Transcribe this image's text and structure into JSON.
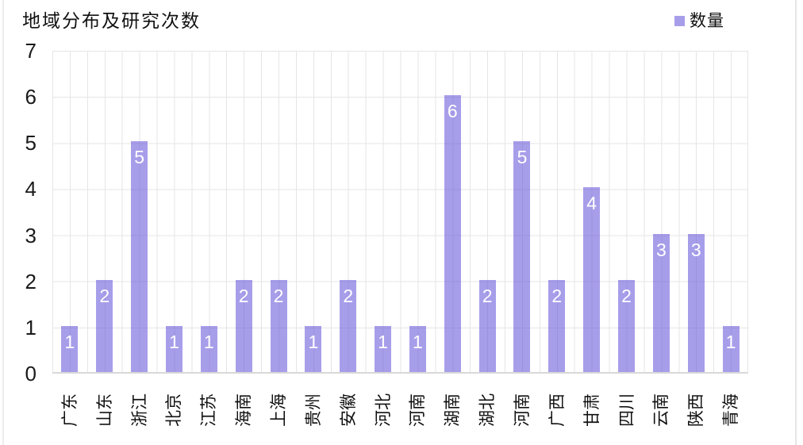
{
  "title": "地域分布及研究次数",
  "legend": {
    "label": "数量"
  },
  "chart_data": {
    "type": "bar",
    "title": "地域分布及研究次数",
    "categories": [
      "广东",
      "山东",
      "浙江",
      "北京",
      "江苏",
      "海南",
      "上海",
      "贵州",
      "安徽",
      "河北",
      "河南",
      "湖南",
      "湖北",
      "河南",
      "广西",
      "甘肃",
      "四川",
      "云南",
      "陕西",
      "青海"
    ],
    "series": [
      {
        "name": "数量",
        "values": [
          1,
          2,
          5,
          1,
          1,
          2,
          2,
          1,
          2,
          1,
          1,
          6,
          2,
          5,
          2,
          4,
          2,
          3,
          3,
          1
        ]
      }
    ],
    "yticks": [
      0,
      1,
      2,
      3,
      4,
      5,
      6,
      7
    ],
    "ylim": [
      0,
      7
    ],
    "xlabel": "",
    "ylabel": "",
    "grid": true,
    "legend_position": "top-right",
    "data_labels": "inside-end",
    "colors": {
      "bar": "#a89fe9",
      "bar_rgba": "rgba(104,88,219,0.58)",
      "data_label": "#ffffff",
      "gridline": "#e5e5e5",
      "axis_line": "#d8d8d8",
      "text": "#111111"
    }
  }
}
